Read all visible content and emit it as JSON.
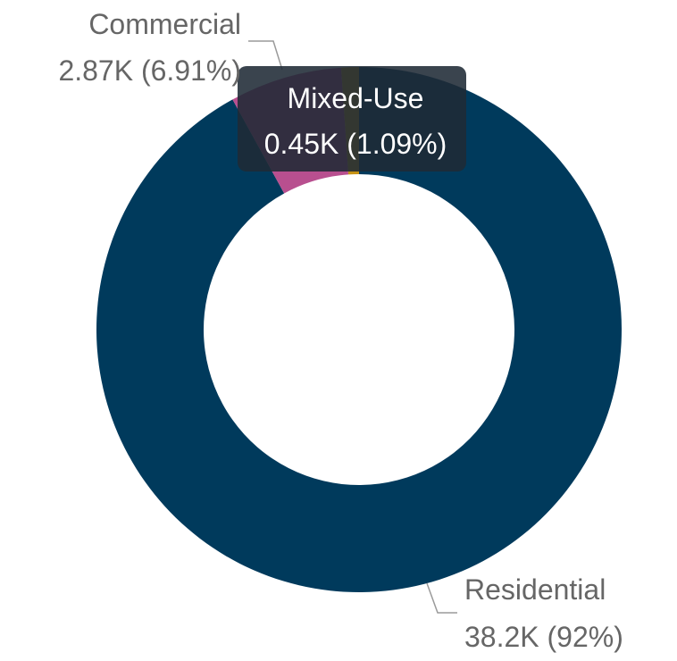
{
  "chart_data": {
    "type": "pie",
    "variant": "donut",
    "slices": [
      {
        "name": "Residential",
        "value_label": "38.2K (92%)",
        "value": 38.2,
        "unit": "K",
        "percent": 92,
        "color": "#003a5c"
      },
      {
        "name": "Commercial",
        "value_label": "2.87K (6.91%)",
        "value": 2.87,
        "unit": "K",
        "percent": 6.91,
        "color": "#7b2f61"
      },
      {
        "name": "Mixed-Use",
        "value_label": "0.45K (1.09%)",
        "value": 0.45,
        "unit": "K",
        "percent": 1.09,
        "color": "#c69214"
      }
    ],
    "tooltip": {
      "name": "Mixed-Use",
      "value_label": "0.45K (1.09%)"
    },
    "hover_highlight_color": "#b84f8f",
    "label_color": "#666666",
    "tooltip_background": "#1f2a36"
  }
}
